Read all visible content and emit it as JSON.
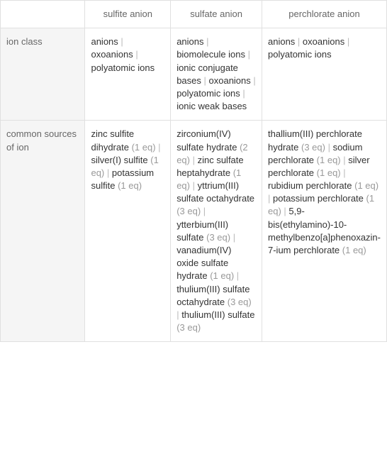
{
  "headers": {
    "corner_empty": "",
    "col_sulfite": "sulfite anion",
    "col_sulfate": "sulfate anion",
    "col_perchlorate": "perchlorate anion"
  },
  "rows": {
    "ion_class": {
      "label": "ion class",
      "sulfite": {
        "items": [
          {
            "name": "anions"
          },
          {
            "name": "oxoanions"
          },
          {
            "name": "polyatomic ions"
          }
        ]
      },
      "sulfate": {
        "items": [
          {
            "name": "anions"
          },
          {
            "name": "biomolecule ions"
          },
          {
            "name": "ionic conjugate bases"
          },
          {
            "name": "oxoanions"
          },
          {
            "name": "polyatomic ions"
          },
          {
            "name": "ionic weak bases"
          }
        ]
      },
      "perchlorate": {
        "items": [
          {
            "name": "anions"
          },
          {
            "name": "oxoanions"
          },
          {
            "name": "polyatomic ions"
          }
        ]
      }
    },
    "sources": {
      "label": "common sources of ion",
      "sulfite": {
        "items": [
          {
            "name": "zinc sulfite dihydrate",
            "eq": "(1 eq)"
          },
          {
            "name": "silver(I) sulfite",
            "eq": "(1 eq)"
          },
          {
            "name": "potassium sulfite",
            "eq": "(1 eq)"
          }
        ]
      },
      "sulfate": {
        "items": [
          {
            "name": "zirconium(IV) sulfate hydrate",
            "eq": "(2 eq)"
          },
          {
            "name": "zinc sulfate heptahydrate",
            "eq": "(1 eq)"
          },
          {
            "name": "yttrium(III) sulfate octahydrate",
            "eq": "(3 eq)"
          },
          {
            "name": "ytterbium(III) sulfate",
            "eq": "(3 eq)"
          },
          {
            "name": "vanadium(IV) oxide sulfate hydrate",
            "eq": "(1 eq)"
          },
          {
            "name": "thulium(III) sulfate octahydrate",
            "eq": "(3 eq)"
          },
          {
            "name": "thulium(III) sulfate",
            "eq": "(3 eq)"
          }
        ]
      },
      "perchlorate": {
        "items": [
          {
            "name": "thallium(III) perchlorate hydrate",
            "eq": "(3 eq)"
          },
          {
            "name": "sodium perchlorate",
            "eq": "(1 eq)"
          },
          {
            "name": "silver perchlorate",
            "eq": "(1 eq)"
          },
          {
            "name": "rubidium perchlorate",
            "eq": "(1 eq)"
          },
          {
            "name": "potassium perchlorate",
            "eq": "(1 eq)"
          },
          {
            "name": "5,9-bis(ethylamino)-10-methylbenzo[a]phenoxazin-7-ium perchlorate",
            "eq": "(1 eq)"
          }
        ]
      }
    }
  },
  "separator": " | "
}
